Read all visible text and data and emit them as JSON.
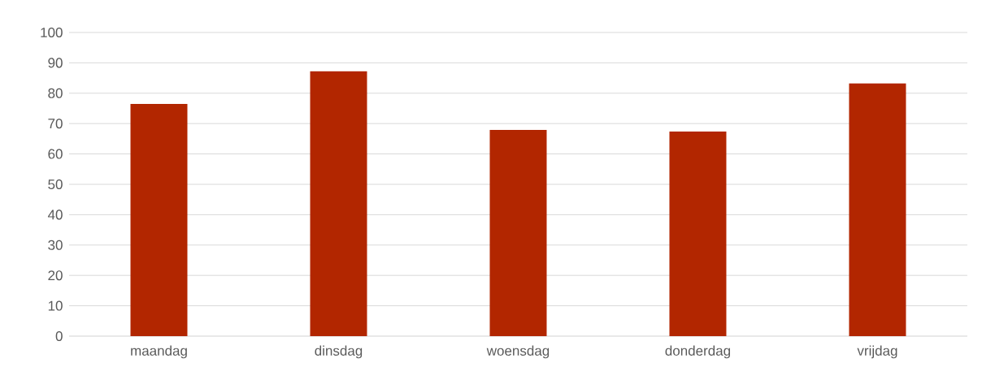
{
  "chart_data": {
    "type": "bar",
    "categories": [
      "maandag",
      "dinsdag",
      "woensdag",
      "donderdag",
      "vrijdag"
    ],
    "values": [
      76.5,
      87.2,
      67.9,
      67.4,
      83.2
    ],
    "color": "#b22600",
    "ylim": [
      0,
      100
    ],
    "yticks": [
      0,
      10,
      20,
      30,
      40,
      50,
      60,
      70,
      80,
      90,
      100
    ],
    "grid": "y"
  }
}
